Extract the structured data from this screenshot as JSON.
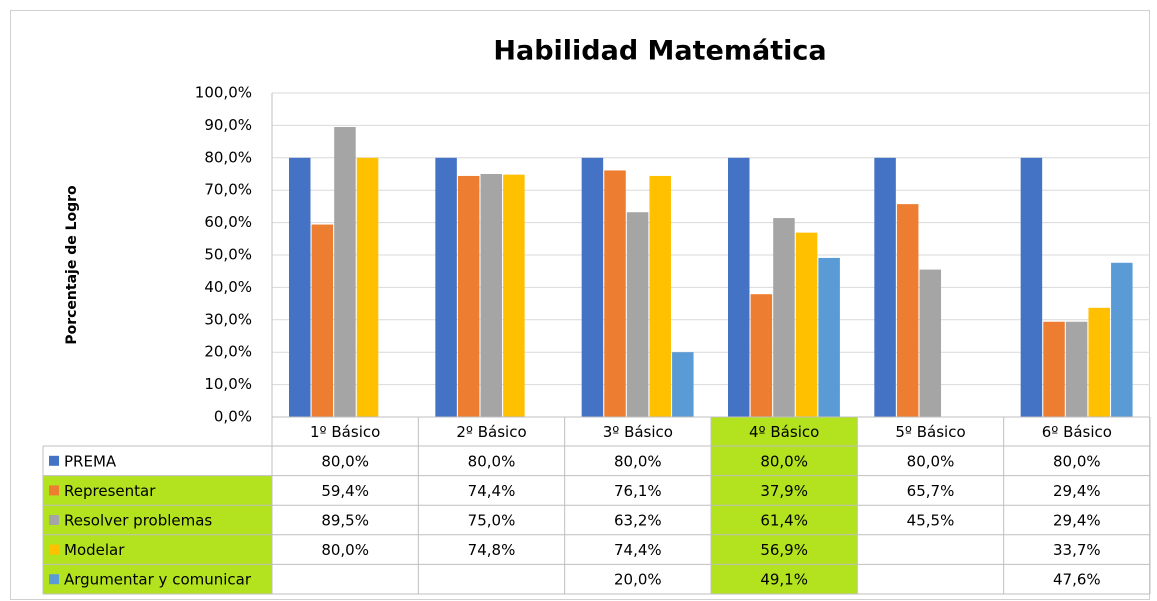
{
  "chart_data": {
    "type": "bar",
    "title": "Habilidad Matemática",
    "y_label": "Porcentaje de Logro",
    "categories": [
      "1º Básico",
      "2º Básico",
      "3º Básico",
      "4º Básico",
      "5º Básico",
      "6º Básico"
    ],
    "series": [
      {
        "name": "PREMA",
        "color": "#4472c4",
        "values": [
          80,
          80,
          80,
          80,
          80,
          80
        ],
        "value_labels": [
          "80,0%",
          "80,0%",
          "80,0%",
          "80,0%",
          "80,0%",
          "80,0%"
        ]
      },
      {
        "name": "Representar",
        "color": "#ed7d31",
        "values": [
          59.4,
          74.4,
          76.1,
          37.9,
          65.7,
          29.4
        ],
        "value_labels": [
          "59,4%",
          "74,4%",
          "76,1%",
          "37,9%",
          "65,7%",
          "29,4%"
        ]
      },
      {
        "name": "Resolver problemas",
        "color": "#a5a5a5",
        "values": [
          89.5,
          75,
          63.2,
          61.4,
          45.5,
          29.4
        ],
        "value_labels": [
          "89,5%",
          "75,0%",
          "63,2%",
          "61,4%",
          "45,5%",
          "29,4%"
        ]
      },
      {
        "name": "Modelar",
        "color": "#ffc000",
        "values": [
          80,
          74.8,
          74.4,
          56.9,
          null,
          33.7
        ],
        "value_labels": [
          "80,0%",
          "74,8%",
          "74,4%",
          "56,9%",
          null,
          "33,7%"
        ]
      },
      {
        "name": "Argumentar y comunicar",
        "color": "#5b9bd5",
        "values": [
          null,
          null,
          20,
          49.1,
          null,
          47.6
        ],
        "value_labels": [
          null,
          null,
          "20,0%",
          "49,1%",
          null,
          "47,6%"
        ]
      }
    ],
    "ylim": [
      0,
      100
    ],
    "yticks": [
      {
        "value": 0,
        "label": "0,0%"
      },
      {
        "value": 10,
        "label": "10,0%"
      },
      {
        "value": 20,
        "label": "20,0%"
      },
      {
        "value": 30,
        "label": "30,0%"
      },
      {
        "value": 40,
        "label": "40,0%"
      },
      {
        "value": 50,
        "label": "50,0%"
      },
      {
        "value": 60,
        "label": "60,0%"
      },
      {
        "value": 70,
        "label": "70,0%"
      },
      {
        "value": 80,
        "label": "80,0%"
      },
      {
        "value": 90,
        "label": "90,0%"
      },
      {
        "value": 100,
        "label": "100,0%"
      }
    ],
    "grid": true,
    "highlight": {
      "color": "#b3e31e",
      "category": 3,
      "series": [
        1,
        2,
        3,
        4
      ]
    }
  }
}
